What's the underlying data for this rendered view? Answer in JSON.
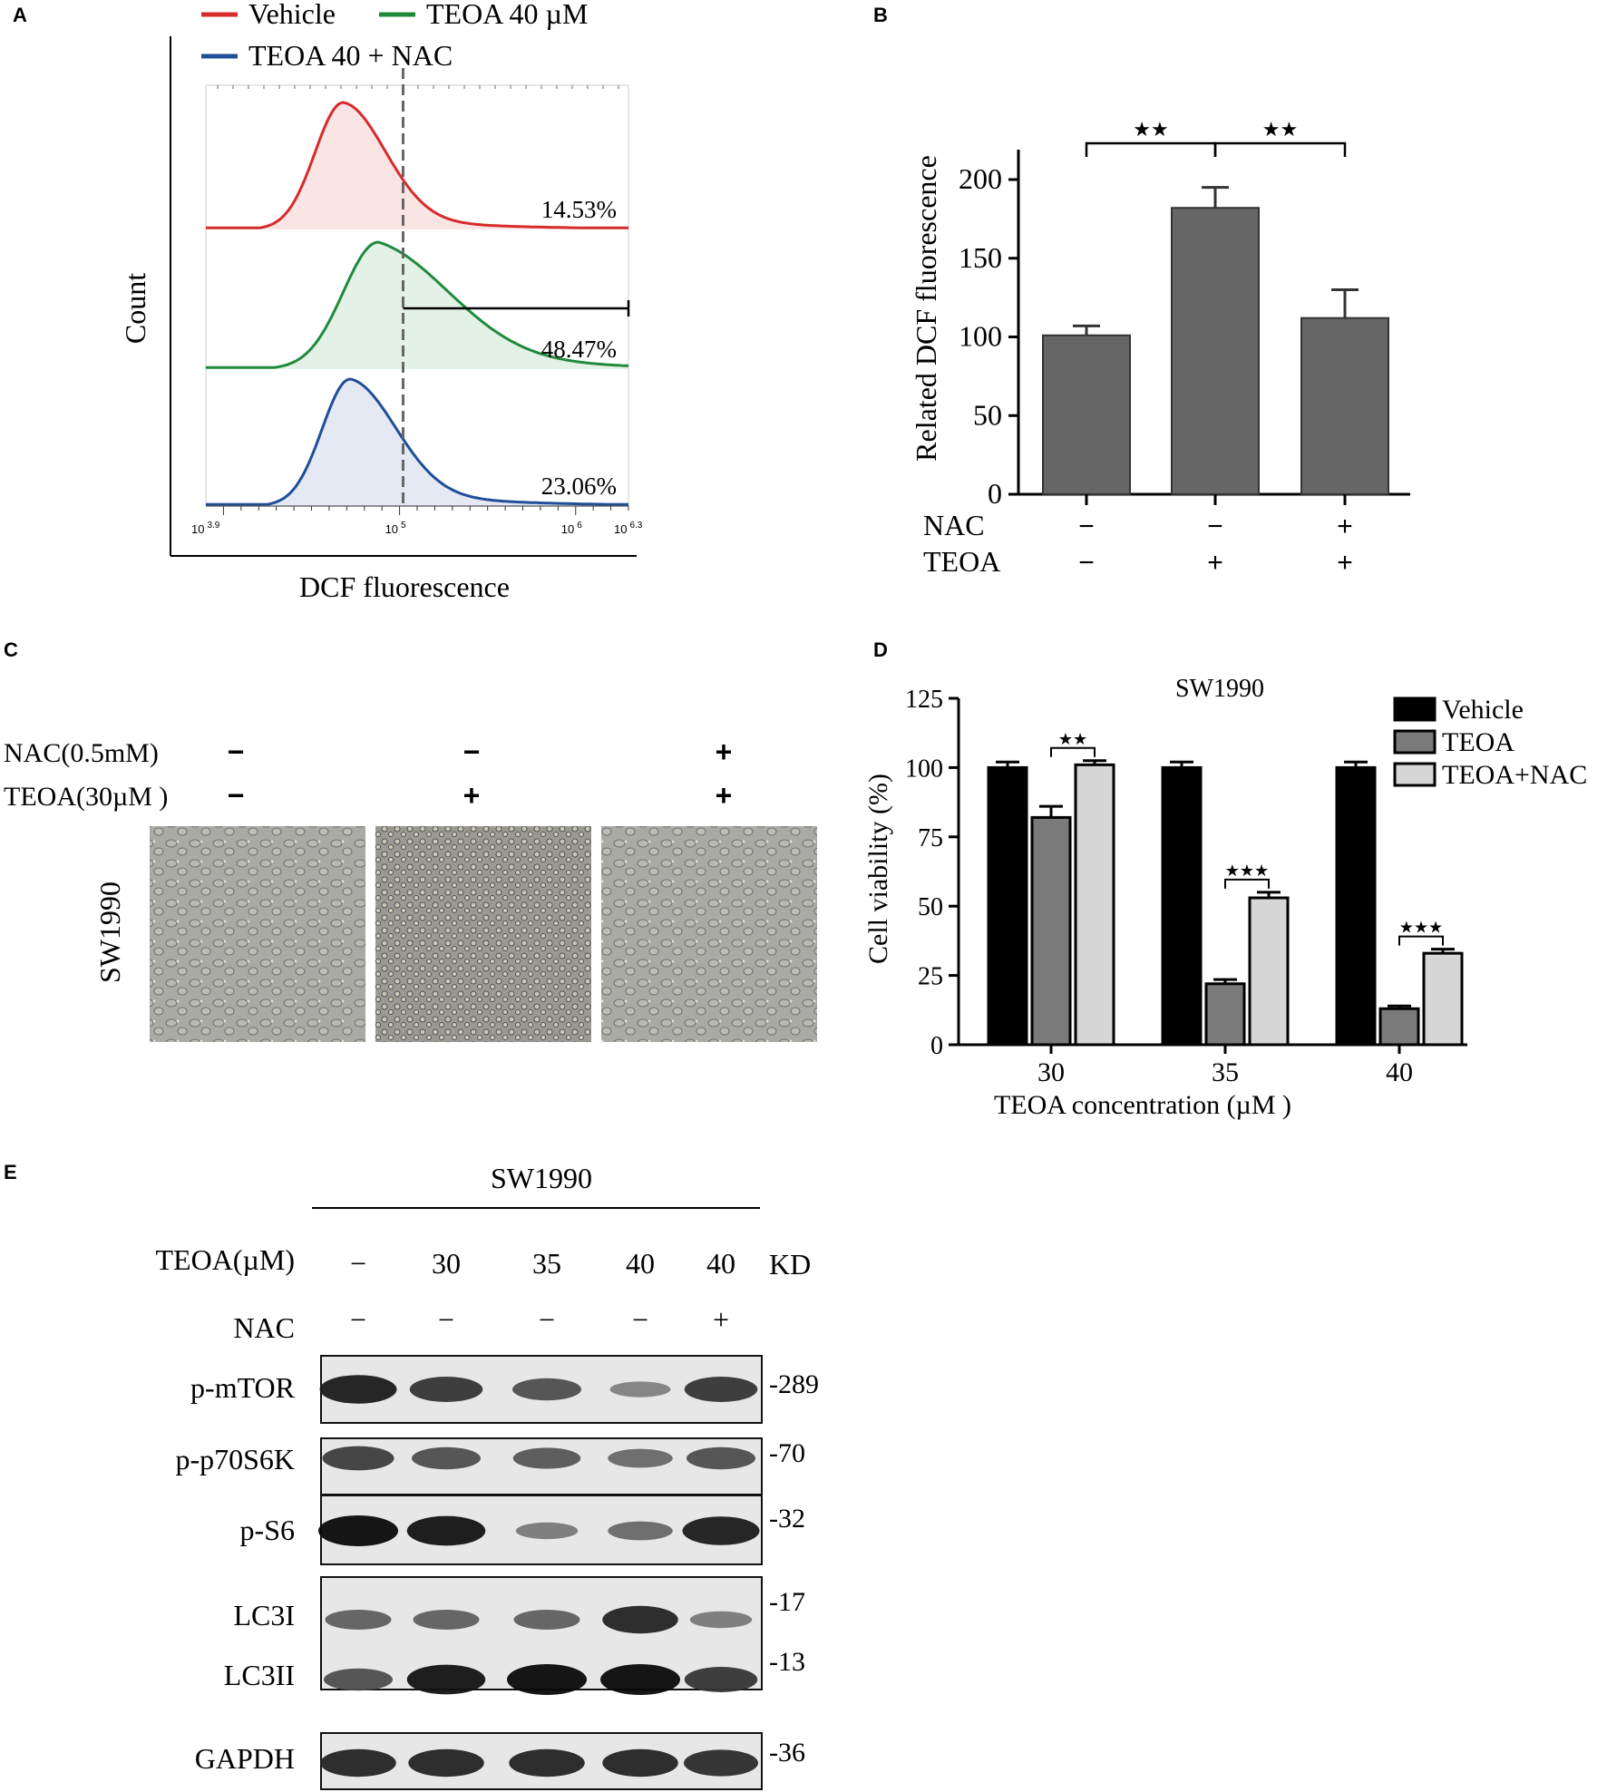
{
  "panels": {
    "A": {
      "label": "A",
      "legend": [
        {
          "name": "Vehicle",
          "color": "#d62b2b"
        },
        {
          "name": "TEOA 40 µM",
          "color": "#1f8a3c"
        },
        {
          "name": "TEOA 40 + NAC",
          "color": "#1f4e9a"
        }
      ],
      "ylabel": "Count",
      "xlabel": "DCF fluorescence",
      "ticks": [
        {
          "base": "10",
          "exp": "3.9",
          "value": 3.9
        },
        {
          "base": "10",
          "exp": "5",
          "value": 5.0
        },
        {
          "base": "10",
          "exp": "6",
          "value": 6.0
        },
        {
          "base": "10",
          "exp": "6.3",
          "value": 6.3
        }
      ],
      "xlim_log10": [
        3.9,
        6.3
      ],
      "gate_log10": 5.02,
      "percentages": [
        "14.53%",
        "48.47%",
        "23.06%"
      ]
    },
    "B": {
      "label": "B",
      "ylabel": "Related DCF fluorescence",
      "ylim": [
        0,
        225
      ],
      "yticks": [
        "0",
        "50",
        "100",
        "150",
        "200"
      ],
      "bar_color": "#666666",
      "bars": [
        {
          "value": 101,
          "error": 6
        },
        {
          "value": 182,
          "error": 13
        },
        {
          "value": 112,
          "error": 18
        }
      ],
      "rows": [
        {
          "label": "NAC",
          "marks": [
            "−",
            "−",
            "+"
          ]
        },
        {
          "label": "TEOA",
          "marks": [
            "−",
            "+",
            "+"
          ]
        }
      ],
      "significance": [
        {
          "from": 0,
          "to": 1,
          "stars": "★★"
        },
        {
          "from": 1,
          "to": 2,
          "stars": "★★"
        }
      ]
    },
    "C": {
      "label": "C",
      "rows": [
        {
          "label": "NAC(0.5mM)",
          "marks": [
            "−",
            "−",
            "+"
          ]
        },
        {
          "label": "TEOA(30µM )",
          "marks": [
            "−",
            "+",
            "+"
          ]
        }
      ],
      "side_label": "SW1990",
      "images": [
        "brightfield-vehicle",
        "brightfield-teoa",
        "brightfield-teoa-nac"
      ]
    },
    "D": {
      "label": "D",
      "title": "SW1990",
      "ylabel": "Cell viability (%)",
      "xlabel": "TEOA concentration (µM )",
      "ylim": [
        0,
        125
      ],
      "yticks": [
        "0",
        "25",
        "50",
        "75",
        "100",
        "125"
      ],
      "categories": [
        "30",
        "35",
        "40"
      ],
      "series": [
        {
          "name": "Vehicle",
          "color": "#000000",
          "values": [
            100,
            100,
            100
          ],
          "errors": [
            2,
            2,
            2
          ]
        },
        {
          "name": "TEOA",
          "color": "#7a7a7a",
          "values": [
            82,
            22,
            13
          ],
          "errors": [
            4,
            1.5,
            1
          ]
        },
        {
          "name": "TEOA+NAC",
          "color": "#d6d6d6",
          "values": [
            101,
            53,
            33
          ],
          "errors": [
            1.5,
            2,
            1.5
          ]
        }
      ],
      "significance": [
        "★★",
        "★★★",
        "★★★"
      ]
    },
    "E": {
      "label": "E",
      "cell_line": "SW1990",
      "teoa_label": "TEOA(µM)",
      "nac_label": "NAC",
      "kd_label": "KD",
      "teoa_values": [
        "−",
        "30",
        "35",
        "40",
        "40"
      ],
      "nac_values": [
        "−",
        "−",
        "−",
        "−",
        "+"
      ],
      "blots": [
        {
          "name": "p-mTOR",
          "kd": "-289",
          "intensities": [
            0.9,
            0.75,
            0.6,
            0.3,
            0.75
          ]
        },
        {
          "name": "p-p70S6K",
          "kd": "-70",
          "intensities": [
            0.7,
            0.6,
            0.55,
            0.45,
            0.6
          ]
        },
        {
          "name": "p-S6",
          "kd": "-32",
          "intensities": [
            1.0,
            0.95,
            0.35,
            0.45,
            0.9
          ]
        },
        {
          "name": "LC3I",
          "kd": "-17",
          "intensities": [
            0.5,
            0.5,
            0.5,
            0.85,
            0.35
          ]
        },
        {
          "name": "LC3II",
          "kd": "-13",
          "intensities": [
            0.6,
            0.95,
            1.0,
            1.0,
            0.75
          ]
        },
        {
          "name": "GAPDH",
          "kd": "-36",
          "intensities": [
            0.85,
            0.85,
            0.85,
            0.85,
            0.8
          ]
        }
      ]
    }
  }
}
